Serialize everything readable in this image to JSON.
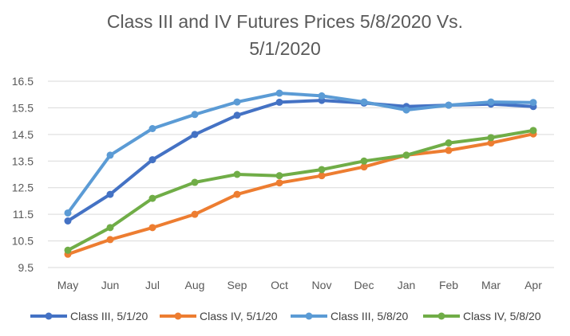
{
  "chart_data": {
    "type": "line",
    "title_line1": "Class III and IV Futures Prices 5/8/2020 Vs.",
    "title_line2": "5/1/2020",
    "xlabel": "",
    "ylabel": "",
    "categories": [
      "May",
      "Jun",
      "Jul",
      "Aug",
      "Sep",
      "Oct",
      "Nov",
      "Dec",
      "Jan",
      "Feb",
      "Mar",
      "Apr"
    ],
    "ylim": [
      9.5,
      16.5
    ],
    "yticks": [
      "16.5",
      "15.5",
      "14.5",
      "13.5",
      "12.5",
      "11.5",
      "10.5",
      "9.5"
    ],
    "grid": true,
    "legend_position": "bottom",
    "series": [
      {
        "name": "Class III, 5/1/20",
        "color": "#4472C4",
        "values": [
          11.25,
          12.25,
          13.55,
          14.5,
          15.22,
          15.71,
          15.78,
          15.68,
          15.55,
          15.6,
          15.64,
          15.55
        ]
      },
      {
        "name": "Class IV, 5/1/20",
        "color": "#ED7D31",
        "values": [
          10.0,
          10.55,
          11.0,
          11.5,
          12.25,
          12.68,
          12.95,
          13.28,
          13.72,
          13.9,
          14.18,
          14.52
        ]
      },
      {
        "name": "Class III, 5/8/20",
        "color": "#5B9BD5",
        "values": [
          11.55,
          13.72,
          14.72,
          15.25,
          15.72,
          16.05,
          15.95,
          15.72,
          15.42,
          15.6,
          15.72,
          15.7
        ]
      },
      {
        "name": "Class IV, 5/8/20",
        "color": "#70AD47",
        "values": [
          10.15,
          11.0,
          12.1,
          12.7,
          13.0,
          12.95,
          13.18,
          13.5,
          13.72,
          14.18,
          14.38,
          14.65
        ]
      }
    ]
  }
}
